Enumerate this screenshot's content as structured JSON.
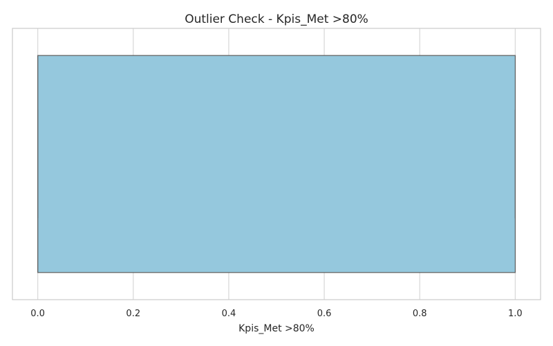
{
  "chart_data": {
    "type": "boxplot",
    "title": "Outlier Check - Kpis_Met >80%",
    "xlabel": "Kpis_Met >80%",
    "ylabel": "",
    "orientation": "horizontal",
    "xlim": [
      -0.053,
      1.053
    ],
    "xticks": [
      0.0,
      0.2,
      0.4,
      0.6,
      0.8,
      1.0
    ],
    "xtick_labels": [
      "0.0",
      "0.2",
      "0.4",
      "0.6",
      "0.8",
      "1.0"
    ],
    "grid": true,
    "series": [
      {
        "q1": 0.0,
        "median": 0.0,
        "q3": 1.0,
        "whisker_low": 0.0,
        "whisker_high": 1.0,
        "outliers": []
      }
    ],
    "colors": {
      "box_fill": "#95c8dd",
      "box_edge": "#616161",
      "grid": "#d9d9d9",
      "frame": "#cccccc",
      "text": "#262626"
    }
  }
}
